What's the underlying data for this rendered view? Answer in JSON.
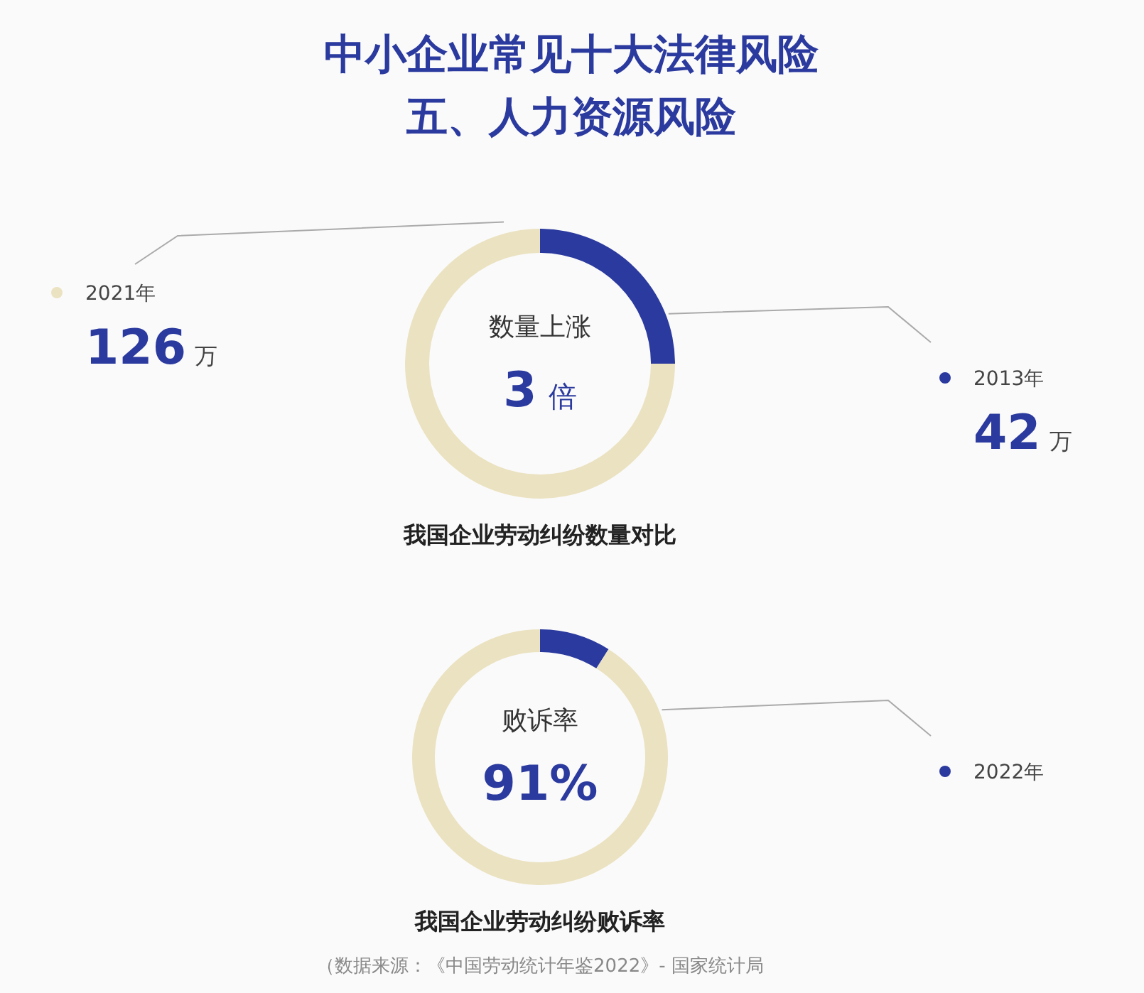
{
  "chart_data": [
    {
      "type": "other",
      "title": "中小企业常见十大法律风险",
      "subtitle": "五、人力资源风险"
    },
    {
      "type": "donut",
      "title": "我国企业劳动纠纷数量对比",
      "categories": [
        "2013年",
        "2021年"
      ],
      "values": [
        42,
        126
      ],
      "colors": [
        "#2b3a9e",
        "#ebe2c1"
      ],
      "value_labels": [
        "42 万",
        "126 万"
      ],
      "legend": "left",
      "annotations": [
        "数量上涨",
        "3 倍"
      ]
    },
    {
      "type": "donut",
      "title": "我国企业劳动纠纷败诉率",
      "categories": [
        "2022年",
        null
      ],
      "values": [
        9,
        91
      ],
      "colors": [
        "#2b3a9e",
        "#ebe2c1"
      ],
      "legend": "right",
      "annotations": [
        "败诉率",
        "91%",
        "（数据来源：《中国劳动统计年鉴2022》- 国家统计局"
      ]
    }
  ]
}
